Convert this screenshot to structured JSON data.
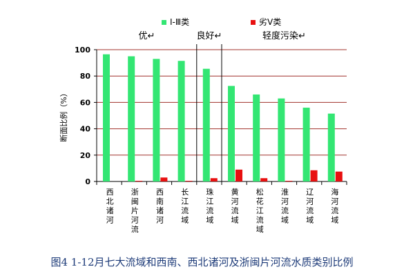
{
  "chart_data": {
    "type": "bar",
    "categories": [
      "西北诸河",
      "浙闽片河流",
      "西南诸河",
      "长江流域",
      "珠江流域",
      "黄河流域",
      "松花江流域",
      "淮河流域",
      "辽河流域",
      "海河流域"
    ],
    "series": [
      {
        "name": "Ⅰ-Ⅲ类",
        "color": "#33e673",
        "values": [
          96.5,
          95,
          93,
          91.5,
          85.5,
          72.5,
          66,
          63,
          56,
          51.5
        ]
      },
      {
        "name": "劣Ⅴ类",
        "color": "#e81010",
        "values": [
          0,
          0.5,
          3,
          0.5,
          2.5,
          9,
          2.5,
          0.5,
          8.5,
          7.5
        ]
      }
    ],
    "ylabel": "断面比例（%）",
    "ylim": [
      0,
      100
    ],
    "yticks": [
      0,
      20,
      40,
      60,
      80,
      100
    ],
    "grid": true,
    "legend_position": "top",
    "groups": [
      {
        "label": "优↵",
        "from": 0,
        "to": 3
      },
      {
        "label": "良好↵",
        "from": 4,
        "to": 4
      },
      {
        "label": "轻度污染↵",
        "from": 5,
        "to": 9
      }
    ],
    "gridline_color": "#a0302a",
    "title": ""
  },
  "caption": "图4 1-12月七大流域和西南、西北诸河及浙闽片河流水质类别比例"
}
